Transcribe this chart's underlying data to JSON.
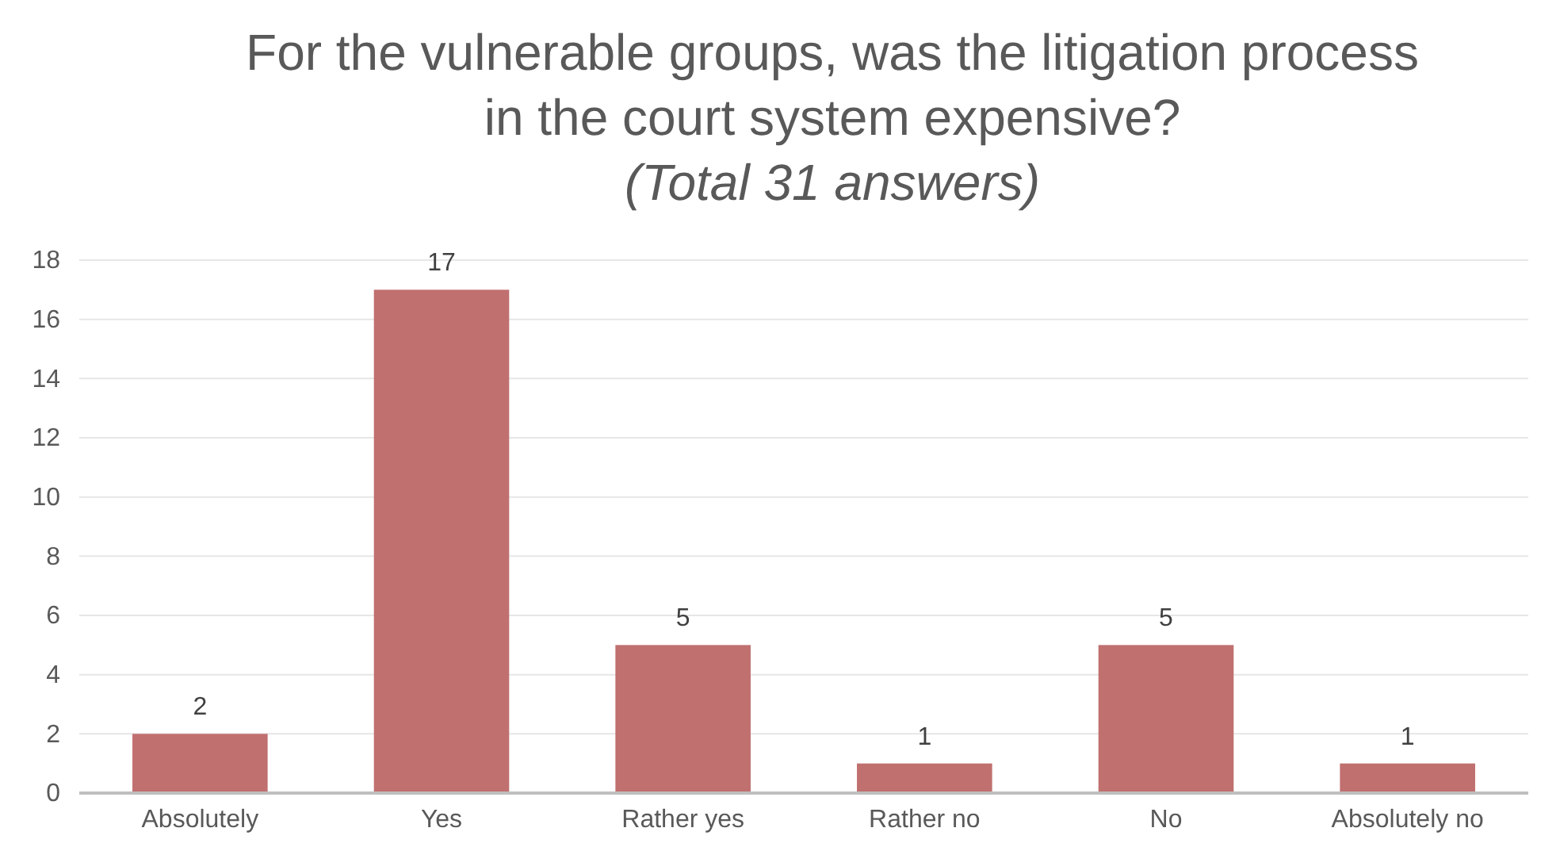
{
  "chart_data": {
    "type": "bar",
    "title": "For the vulnerable groups, was the litigation process in the court system expensive?",
    "subtitle": "(Total 31 answers)",
    "categories": [
      "Absolutely",
      "Yes",
      "Rather yes",
      "Rather no",
      "No",
      "Absolutely no"
    ],
    "values": [
      2,
      17,
      5,
      1,
      5,
      1
    ],
    "color": "#c0706f",
    "ylim": [
      0,
      18
    ],
    "yticks": [
      0,
      2,
      4,
      6,
      8,
      10,
      12,
      14,
      16,
      18
    ],
    "grid": "y",
    "data_labels": true
  }
}
